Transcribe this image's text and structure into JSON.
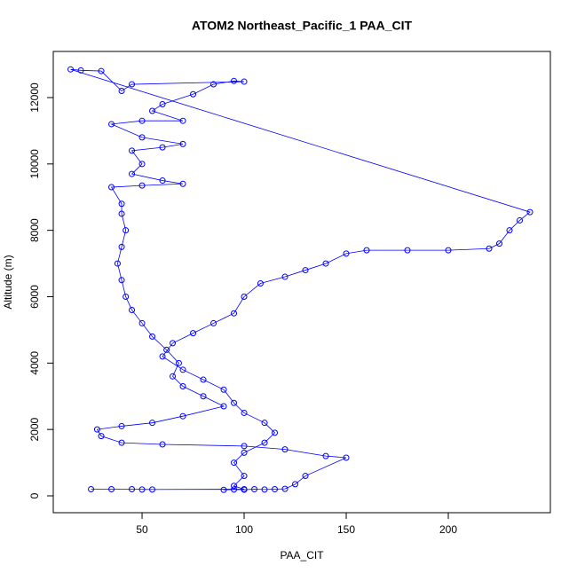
{
  "chart_data": {
    "type": "scatter",
    "title": "ATOM2 Northeast_Pacific_1 PAA_CIT",
    "x_label": "PAA_CIT",
    "y_label": "Altitude (m)",
    "lines": true,
    "color": "#0000ff",
    "xlim": [
      6.5,
      250
    ],
    "ylim": [
      -508,
      13390
    ],
    "xticks": [
      50,
      100,
      150,
      200
    ],
    "yticks": [
      0,
      2000,
      4000,
      6000,
      8000,
      10000,
      12000
    ],
    "x": [
      90,
      95,
      100,
      105,
      110,
      115,
      120,
      125,
      130,
      150,
      140,
      120,
      100,
      60,
      40,
      30,
      28,
      40,
      55,
      70,
      90,
      80,
      70,
      65,
      68,
      62,
      55,
      50,
      45,
      42,
      40,
      38,
      40,
      42,
      40,
      40,
      35,
      50,
      70,
      60,
      45,
      50,
      45,
      60,
      70,
      50,
      35,
      50,
      70,
      55,
      60,
      75,
      85,
      95,
      100,
      45,
      40,
      30,
      20,
      15,
      240,
      235,
      230,
      225,
      220,
      200,
      180,
      160,
      150,
      140,
      130,
      120,
      108,
      100,
      95,
      85,
      75,
      65,
      60,
      70,
      80,
      90,
      95,
      100,
      110,
      115,
      110,
      100,
      95,
      100,
      95,
      100,
      50,
      55,
      45,
      35,
      25
    ],
    "y": [
      180,
      190,
      185,
      200,
      190,
      200,
      210,
      350,
      600,
      1150,
      1200,
      1400,
      1500,
      1550,
      1600,
      1800,
      2000,
      2100,
      2200,
      2400,
      2700,
      3000,
      3300,
      3600,
      4000,
      4400,
      4800,
      5200,
      5600,
      6000,
      6500,
      7000,
      7500,
      8000,
      8500,
      8800,
      9300,
      9350,
      9400,
      9500,
      9700,
      10000,
      10400,
      10500,
      10600,
      10800,
      11200,
      11300,
      11300,
      11600,
      11800,
      12100,
      12400,
      12500,
      12480,
      12400,
      12200,
      12800,
      12820,
      12850,
      8550,
      8300,
      8000,
      7600,
      7450,
      7400,
      7400,
      7400,
      7300,
      7000,
      6800,
      6600,
      6400,
      6000,
      5500,
      5200,
      4900,
      4600,
      4200,
      3800,
      3500,
      3200,
      2800,
      2500,
      2200,
      1900,
      1600,
      1300,
      1000,
      600,
      300,
      200,
      190,
      190,
      200,
      200,
      200
    ]
  }
}
